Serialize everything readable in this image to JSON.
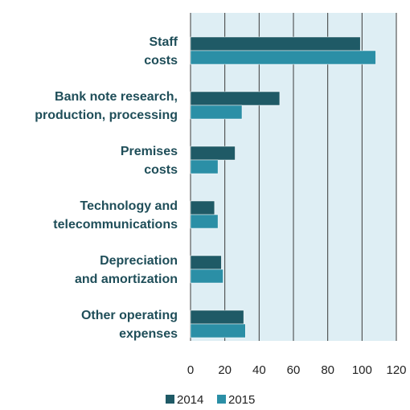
{
  "chart_data": {
    "type": "bar",
    "orientation": "horizontal",
    "categories": [
      [
        "Staff",
        "costs"
      ],
      [
        "Bank note research,",
        "production, processing"
      ],
      [
        "Premises",
        "costs"
      ],
      [
        "Technology and",
        "telecommunications"
      ],
      [
        "Depreciation",
        "and amortization"
      ],
      [
        "Other operating",
        "expenses"
      ]
    ],
    "series": [
      {
        "name": "2014",
        "color": "#1f5a66",
        "values": [
          99,
          52,
          26,
          14,
          18,
          31
        ]
      },
      {
        "name": "2015",
        "color": "#2b8fa6",
        "values": [
          108,
          30,
          16,
          16,
          19,
          32
        ]
      }
    ],
    "xlim": [
      0,
      120
    ],
    "xticks": [
      "0",
      "20",
      "40",
      "60",
      "80",
      "100",
      "120"
    ],
    "grid": true,
    "plot_background": "#deeef4",
    "legend_position": "bottom"
  }
}
